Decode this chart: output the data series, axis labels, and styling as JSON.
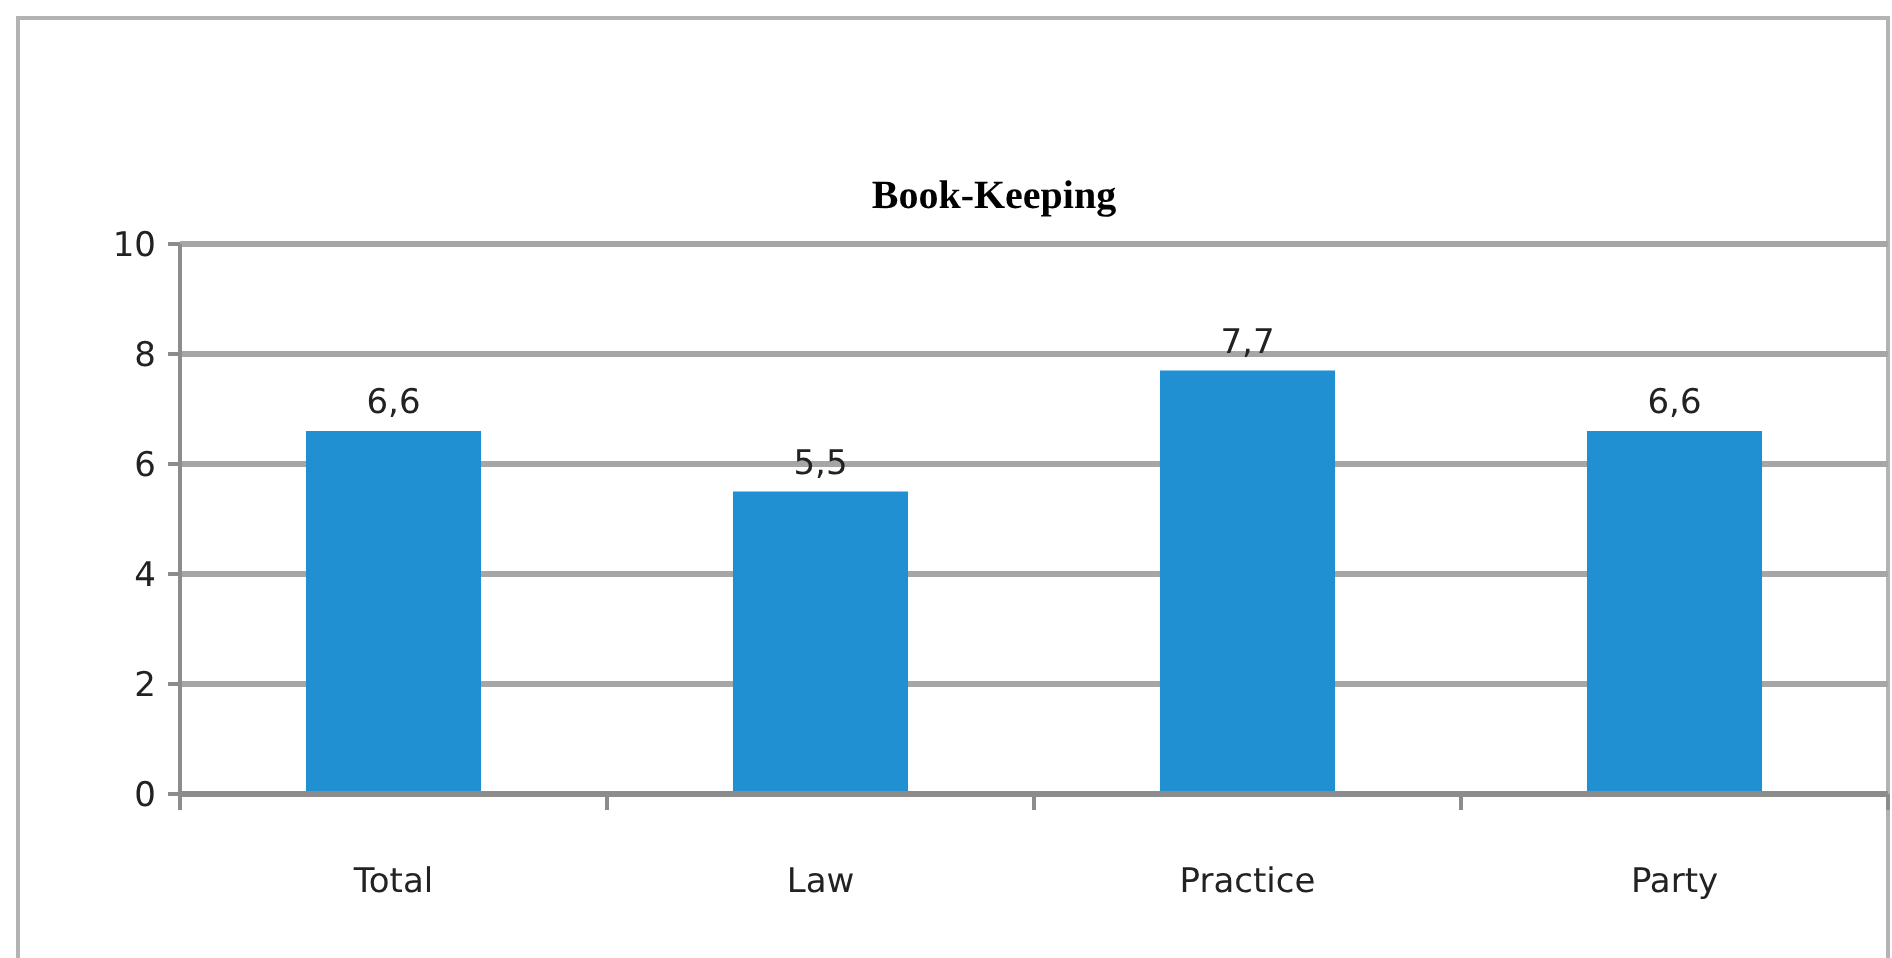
{
  "chart_data": {
    "type": "bar",
    "title": "Book-Keeping",
    "categories": [
      "Total",
      "Law",
      "Practice",
      "Party"
    ],
    "values": [
      6.6,
      5.5,
      7.7,
      6.6
    ],
    "value_labels": [
      "6,6",
      "5,5",
      "7,7",
      "6,6"
    ],
    "color": "#2190d2",
    "ylim": [
      0,
      10
    ],
    "yticks": [
      0,
      2,
      4,
      6,
      8,
      10
    ],
    "grid": "y"
  }
}
